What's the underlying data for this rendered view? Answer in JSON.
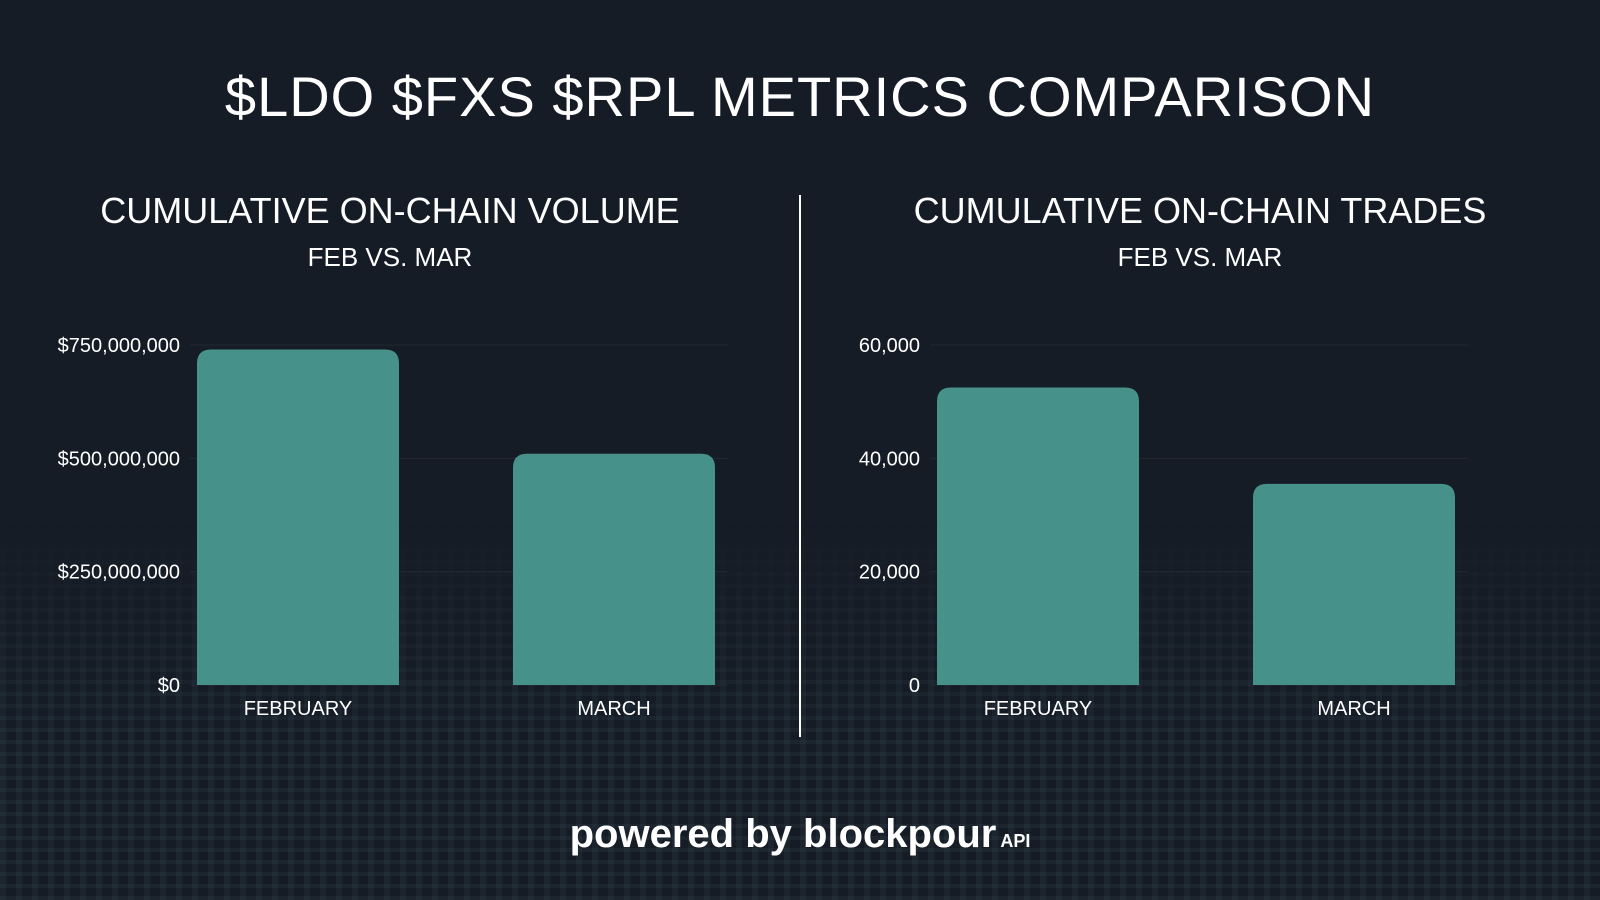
{
  "title": "$LDO $FXS $RPL METRICS COMPARISON",
  "footer": {
    "powered": "powered by",
    "brand": "blockpour",
    "api": "API"
  },
  "colors": {
    "background": "#161c26",
    "bar": "#46928b",
    "text": "#ffffff"
  },
  "chart_data": [
    {
      "type": "bar",
      "title": "CUMULATIVE ON-CHAIN VOLUME",
      "subtitle": "FEB VS. MAR",
      "categories": [
        "FEBRUARY",
        "MARCH"
      ],
      "values": [
        740000000,
        510000000
      ],
      "ylim": [
        0,
        750000000
      ],
      "yticks": [
        0,
        250000000,
        500000000,
        750000000
      ],
      "ytick_labels": [
        "$0",
        "$250,000,000",
        "$500,000,000",
        "$750,000,000"
      ],
      "grid": true
    },
    {
      "type": "bar",
      "title": "CUMULATIVE ON-CHAIN TRADES",
      "subtitle": "FEB VS. MAR",
      "categories": [
        "FEBRUARY",
        "MARCH"
      ],
      "values": [
        52500,
        35500
      ],
      "ylim": [
        0,
        60000
      ],
      "yticks": [
        0,
        20000,
        40000,
        60000
      ],
      "ytick_labels": [
        "0",
        "20,000",
        "40,000",
        "60,000"
      ],
      "grid": true
    }
  ]
}
